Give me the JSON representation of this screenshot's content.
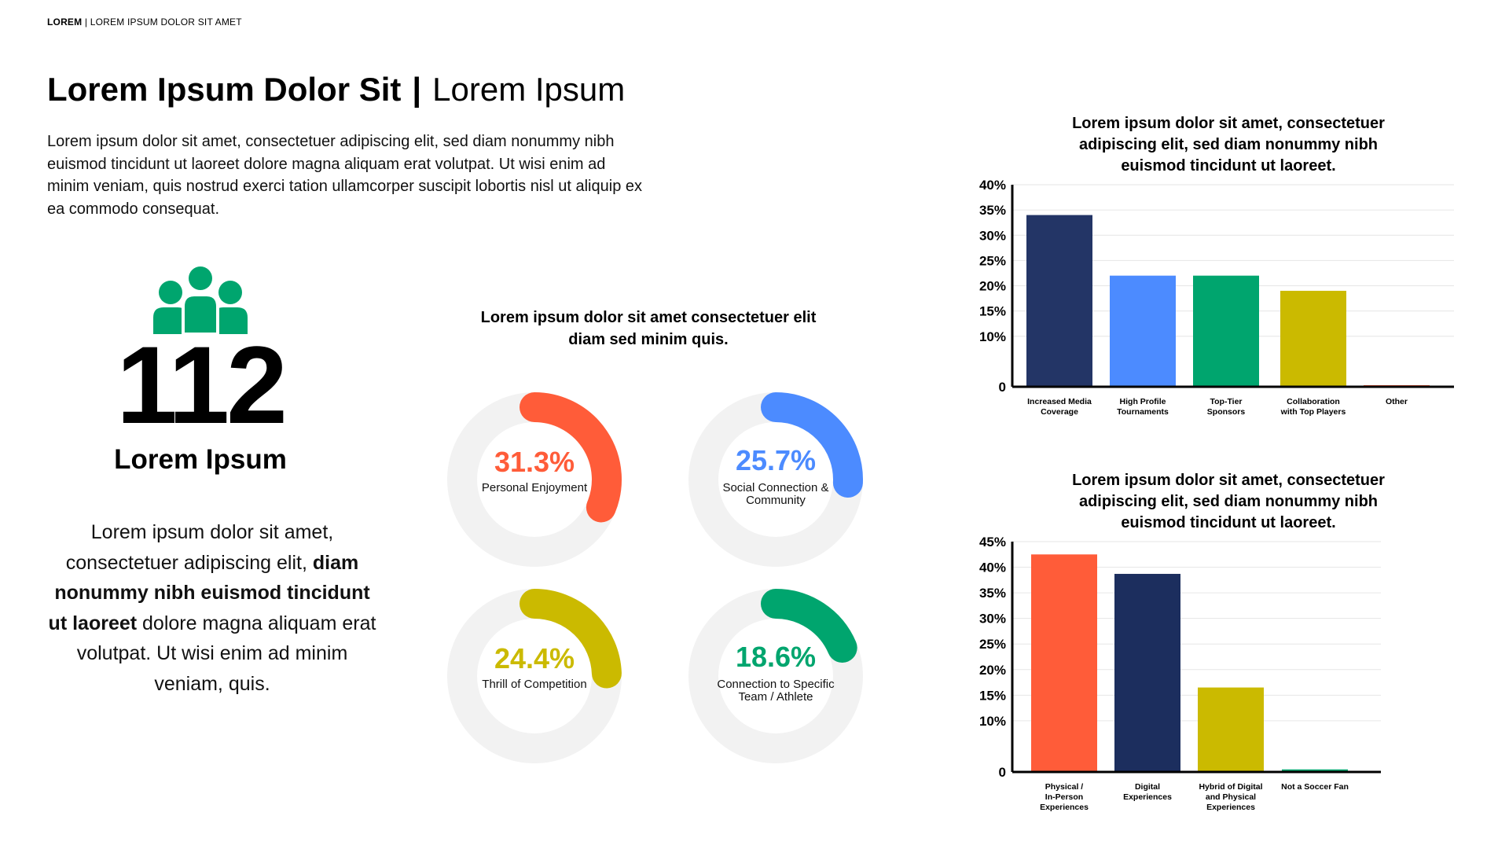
{
  "header": {
    "brand": "LOREM",
    "sub": "LOREM IPSUM DOLOR SIT AMET"
  },
  "title": {
    "main": "Lorem Ipsum Dolor Sit",
    "separator": "|",
    "secondary": "Lorem Ipsum"
  },
  "intro": "Lorem ipsum dolor sit amet, consectetuer adipiscing elit, sed diam nonummy nibh euismod tincidunt ut laoreet dolore magna aliquam erat volutpat. Ut wisi enim ad minim veniam, quis nostrud exerci tation ullamcorper suscipit lobortis nisl ut aliquip ex ea commodo consequat.",
  "stat": {
    "value": "112",
    "label": "Lorem Ipsum",
    "icon": "people-group-icon",
    "color": "#00A56E"
  },
  "quote": {
    "pre": "Lorem ipsum dolor sit amet, consectetuer adipiscing elit,",
    "bold": "diam nonummy nibh euismod tincidunt ut laoreet",
    "post": "dolore magna aliquam erat volutpat. Ut wisi enim ad minim veniam, quis."
  },
  "donut_section": {
    "title": "Lorem ipsum dolor sit amet consectetuer elit diam sed minim quis.",
    "items": [
      {
        "value": 31.3,
        "pct_text": "31.3%",
        "label": "Personal Enjoyment",
        "color": "#FF5C39"
      },
      {
        "value": 25.7,
        "pct_text": "25.7%",
        "label": "Social Connection & Community",
        "color": "#4C8BFF"
      },
      {
        "value": 24.4,
        "pct_text": "24.4%",
        "label": "Thrill of Competition",
        "color": "#CBBA00"
      },
      {
        "value": 18.6,
        "pct_text": "18.6%",
        "label": "Connection to Specific Team / Athlete",
        "color": "#00A56E"
      }
    ]
  },
  "chart_data": [
    {
      "type": "bar",
      "title": "Lorem ipsum dolor sit amet, consectetuer adipiscing elit, sed diam nonummy nibh euismod tincidunt ut laoreet.",
      "categories": [
        "Increased Media Coverage",
        "High Profile Tournaments",
        "Top-Tier Sponsors",
        "Collaboration with Top Players",
        "Other"
      ],
      "values": [
        34,
        22,
        22,
        19,
        0.3
      ],
      "colors": [
        "#233566",
        "#4C8BFF",
        "#00A56E",
        "#CBBA00",
        "#FF5C39"
      ],
      "ylim": [
        0,
        40
      ],
      "yticks": [
        "0",
        "10%",
        "15%",
        "20%",
        "25%",
        "30%",
        "35%",
        "40%"
      ],
      "ytick_values": [
        0,
        10,
        15,
        20,
        25,
        30,
        35,
        40
      ],
      "xlabel": "",
      "ylabel": "",
      "grid": true
    },
    {
      "type": "bar",
      "title": "Lorem ipsum dolor sit amet, consectetuer adipiscing elit, sed diam nonummy nibh euismod tincidunt ut laoreet.",
      "categories": [
        "Physical / In-Person Experiences",
        "Digital Experiences",
        "Hybrid of Digital and Physical Experiences",
        "Not a Soccer Fan"
      ],
      "values": [
        42.5,
        38.7,
        16.5,
        0.5
      ],
      "colors": [
        "#FF5C39",
        "#1C2E5E",
        "#CBBA00",
        "#00A56E"
      ],
      "ylim": [
        0,
        45
      ],
      "yticks": [
        "0",
        "10%",
        "15%",
        "20%",
        "25%",
        "30%",
        "35%",
        "40%",
        "45%"
      ],
      "ytick_values": [
        0,
        10,
        15,
        20,
        25,
        30,
        35,
        40,
        45
      ],
      "xlabel": "",
      "ylabel": "",
      "grid": true
    }
  ]
}
